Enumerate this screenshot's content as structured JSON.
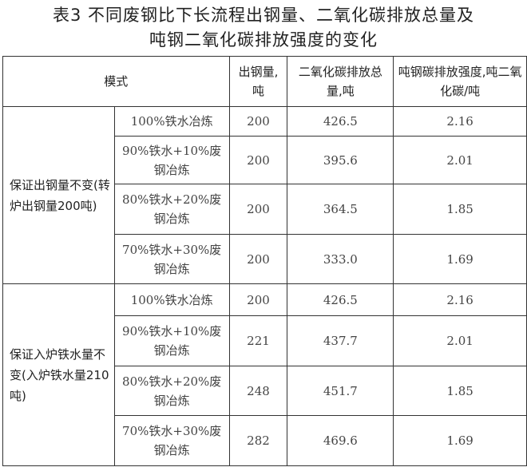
{
  "title_line1": "表3  不同废钢比下长流程出钢量、二氧化碳排放总量及",
  "title_line2": "吨钢二氧化碳排放强度的变化",
  "headers": {
    "mode": "模式",
    "output": "出钢量,吨",
    "total": "二氧化碳排放总量,吨",
    "intensity": "吨钢碳排放强度,吨二氧化碳/吨"
  },
  "groups": [
    {
      "label": "保证出钢量不变(转炉出钢量200吨)",
      "rows": [
        {
          "mode": "100%铁水冶炼",
          "output": "200",
          "total": "426.5",
          "intensity": "2.16"
        },
        {
          "mode": "90%铁水+10%废钢冶炼",
          "output": "200",
          "total": "395.6",
          "intensity": "2.01"
        },
        {
          "mode": "80%铁水+20%废钢冶炼",
          "output": "200",
          "total": "364.5",
          "intensity": "1.85"
        },
        {
          "mode": "70%铁水+30%废钢冶炼",
          "output": "200",
          "total": "333.0",
          "intensity": "1.69"
        }
      ]
    },
    {
      "label": "保证入炉铁水量不变(入炉铁水量210吨)",
      "rows": [
        {
          "mode": "100%铁水冶炼",
          "output": "200",
          "total": "426.5",
          "intensity": "2.16"
        },
        {
          "mode": "90%铁水+10%废钢冶炼",
          "output": "221",
          "total": "437.7",
          "intensity": "2.01"
        },
        {
          "mode": "80%铁水+20%废钢冶炼",
          "output": "248",
          "total": "451.7",
          "intensity": "1.85"
        },
        {
          "mode": "70%铁水+30%废钢冶炼",
          "output": "282",
          "total": "469.6",
          "intensity": "1.69"
        }
      ]
    }
  ]
}
